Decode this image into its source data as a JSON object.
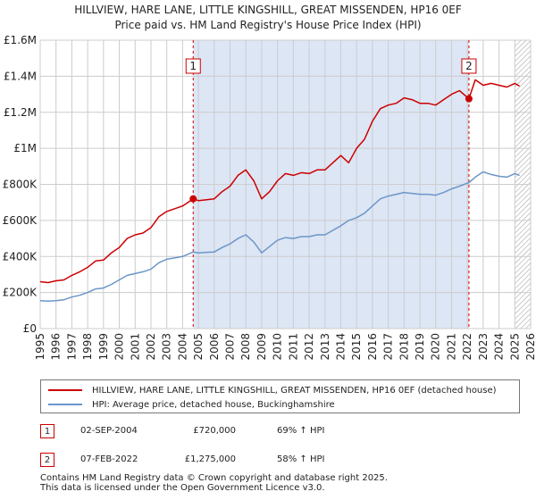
{
  "header": {
    "title_line1": "HILLVIEW, HARE LANE, LITTLE KINGSHILL, GREAT MISSENDEN, HP16 0EF",
    "title_line2": "Price paid vs. HM Land Registry's House Price Index (HPI)"
  },
  "colors": {
    "property": "#cc0000",
    "hpi": "#6b96c8",
    "shade": "#dde6f5",
    "grid": "#cccccc"
  },
  "chart_data": {
    "type": "line",
    "title": "Price paid vs. HM Land Registry's House Price Index (HPI)",
    "xlabel": "",
    "ylabel": "",
    "xlim": [
      1995,
      2026
    ],
    "ylim": [
      0,
      1600000
    ],
    "grid": true,
    "x_ticks": [
      1995,
      1996,
      1997,
      1998,
      1999,
      2000,
      2001,
      2002,
      2003,
      2004,
      2005,
      2006,
      2007,
      2008,
      2009,
      2010,
      2011,
      2012,
      2013,
      2014,
      2015,
      2016,
      2017,
      2018,
      2019,
      2020,
      2021,
      2022,
      2023,
      2024,
      2025,
      2026
    ],
    "x_tick_labels": [
      "1995",
      "1996",
      "1997",
      "1998",
      "1999",
      "2000",
      "2001",
      "2002",
      "2003",
      "2004",
      "2005",
      "2006",
      "2007",
      "2008",
      "2009",
      "2010",
      "2011",
      "2012",
      "2013",
      "2014",
      "2015",
      "2016",
      "2017",
      "2018",
      "2019",
      "2020",
      "2021",
      "2022",
      "2023",
      "2024",
      "2025",
      "2026"
    ],
    "y_ticks": [
      0,
      200000,
      400000,
      600000,
      800000,
      1000000,
      1200000,
      1400000,
      1600000
    ],
    "y_tick_labels": [
      "£0",
      "£200K",
      "£400K",
      "£600K",
      "£800K",
      "£1M",
      "£1.2M",
      "£1.4M",
      "£1.6M"
    ],
    "shaded_region": [
      2004.67,
      2022.1
    ],
    "future_hatch_from": 2025.0,
    "series": [
      {
        "name": "HILLVIEW, HARE LANE, LITTLE KINGSHILL, GREAT MISSENDEN, HP16 0EF (detached house)",
        "color": "#cc0000",
        "points": [
          [
            1995.0,
            260000
          ],
          [
            1995.5,
            255000
          ],
          [
            1996.0,
            265000
          ],
          [
            1996.5,
            270000
          ],
          [
            1997.0,
            295000
          ],
          [
            1997.5,
            315000
          ],
          [
            1998.0,
            340000
          ],
          [
            1998.5,
            375000
          ],
          [
            1999.0,
            380000
          ],
          [
            1999.5,
            420000
          ],
          [
            2000.0,
            450000
          ],
          [
            2000.5,
            500000
          ],
          [
            2001.0,
            520000
          ],
          [
            2001.5,
            530000
          ],
          [
            2002.0,
            560000
          ],
          [
            2002.5,
            620000
          ],
          [
            2003.0,
            650000
          ],
          [
            2003.5,
            665000
          ],
          [
            2004.0,
            680000
          ],
          [
            2004.67,
            720000
          ],
          [
            2005.0,
            710000
          ],
          [
            2005.5,
            715000
          ],
          [
            2006.0,
            720000
          ],
          [
            2006.5,
            760000
          ],
          [
            2007.0,
            790000
          ],
          [
            2007.5,
            850000
          ],
          [
            2008.0,
            880000
          ],
          [
            2008.5,
            820000
          ],
          [
            2009.0,
            720000
          ],
          [
            2009.5,
            760000
          ],
          [
            2010.0,
            820000
          ],
          [
            2010.5,
            860000
          ],
          [
            2011.0,
            850000
          ],
          [
            2011.5,
            865000
          ],
          [
            2012.0,
            860000
          ],
          [
            2012.5,
            880000
          ],
          [
            2013.0,
            880000
          ],
          [
            2013.5,
            920000
          ],
          [
            2014.0,
            960000
          ],
          [
            2014.5,
            920000
          ],
          [
            2015.0,
            1000000
          ],
          [
            2015.5,
            1050000
          ],
          [
            2016.0,
            1150000
          ],
          [
            2016.5,
            1220000
          ],
          [
            2017.0,
            1240000
          ],
          [
            2017.5,
            1250000
          ],
          [
            2018.0,
            1280000
          ],
          [
            2018.5,
            1270000
          ],
          [
            2019.0,
            1250000
          ],
          [
            2019.5,
            1250000
          ],
          [
            2020.0,
            1240000
          ],
          [
            2020.5,
            1270000
          ],
          [
            2021.0,
            1300000
          ],
          [
            2021.5,
            1320000
          ],
          [
            2022.1,
            1275000
          ],
          [
            2022.5,
            1380000
          ],
          [
            2023.0,
            1350000
          ],
          [
            2023.5,
            1360000
          ],
          [
            2024.0,
            1350000
          ],
          [
            2024.5,
            1340000
          ],
          [
            2025.0,
            1360000
          ],
          [
            2025.3,
            1345000
          ]
        ]
      },
      {
        "name": "HPI: Average price, detached house, Buckinghamshire",
        "color": "#6b96c8",
        "points": [
          [
            1995.0,
            155000
          ],
          [
            1995.5,
            152000
          ],
          [
            1996.0,
            155000
          ],
          [
            1996.5,
            160000
          ],
          [
            1997.0,
            175000
          ],
          [
            1997.5,
            185000
          ],
          [
            1998.0,
            200000
          ],
          [
            1998.5,
            220000
          ],
          [
            1999.0,
            225000
          ],
          [
            1999.5,
            245000
          ],
          [
            2000.0,
            270000
          ],
          [
            2000.5,
            295000
          ],
          [
            2001.0,
            305000
          ],
          [
            2001.5,
            315000
          ],
          [
            2002.0,
            330000
          ],
          [
            2002.5,
            365000
          ],
          [
            2003.0,
            385000
          ],
          [
            2003.5,
            392000
          ],
          [
            2004.0,
            400000
          ],
          [
            2004.67,
            425000
          ],
          [
            2005.0,
            420000
          ],
          [
            2005.5,
            423000
          ],
          [
            2006.0,
            425000
          ],
          [
            2006.5,
            450000
          ],
          [
            2007.0,
            470000
          ],
          [
            2007.5,
            500000
          ],
          [
            2008.0,
            520000
          ],
          [
            2008.5,
            480000
          ],
          [
            2009.0,
            420000
          ],
          [
            2009.5,
            455000
          ],
          [
            2010.0,
            490000
          ],
          [
            2010.5,
            505000
          ],
          [
            2011.0,
            500000
          ],
          [
            2011.5,
            510000
          ],
          [
            2012.0,
            510000
          ],
          [
            2012.5,
            520000
          ],
          [
            2013.0,
            520000
          ],
          [
            2013.5,
            545000
          ],
          [
            2014.0,
            570000
          ],
          [
            2014.5,
            600000
          ],
          [
            2015.0,
            615000
          ],
          [
            2015.5,
            640000
          ],
          [
            2016.0,
            680000
          ],
          [
            2016.5,
            720000
          ],
          [
            2017.0,
            735000
          ],
          [
            2017.5,
            745000
          ],
          [
            2018.0,
            755000
          ],
          [
            2018.5,
            750000
          ],
          [
            2019.0,
            745000
          ],
          [
            2019.5,
            745000
          ],
          [
            2020.0,
            740000
          ],
          [
            2020.5,
            755000
          ],
          [
            2021.0,
            775000
          ],
          [
            2021.5,
            790000
          ],
          [
            2022.1,
            810000
          ],
          [
            2022.5,
            840000
          ],
          [
            2023.0,
            870000
          ],
          [
            2023.5,
            855000
          ],
          [
            2024.0,
            845000
          ],
          [
            2024.5,
            840000
          ],
          [
            2025.0,
            860000
          ],
          [
            2025.3,
            850000
          ]
        ]
      }
    ],
    "annotations": [
      {
        "label": "1",
        "x": 2004.67,
        "y": 720000
      },
      {
        "label": "2",
        "x": 2022.1,
        "y": 1275000
      }
    ]
  },
  "legend": {
    "property_label": "HILLVIEW, HARE LANE, LITTLE KINGSHILL, GREAT MISSENDEN, HP16 0EF (detached house)",
    "hpi_label": "HPI: Average price, detached house, Buckinghamshire"
  },
  "sales": [
    {
      "num": "1",
      "date": "02-SEP-2004",
      "price": "£720,000",
      "hpi": "69% ↑ HPI"
    },
    {
      "num": "2",
      "date": "07-FEB-2022",
      "price": "£1,275,000",
      "hpi": "58% ↑ HPI"
    }
  ],
  "footer": {
    "line1": "Contains HM Land Registry data © Crown copyright and database right 2025.",
    "line2": "This data is licensed under the Open Government Licence v3.0."
  }
}
